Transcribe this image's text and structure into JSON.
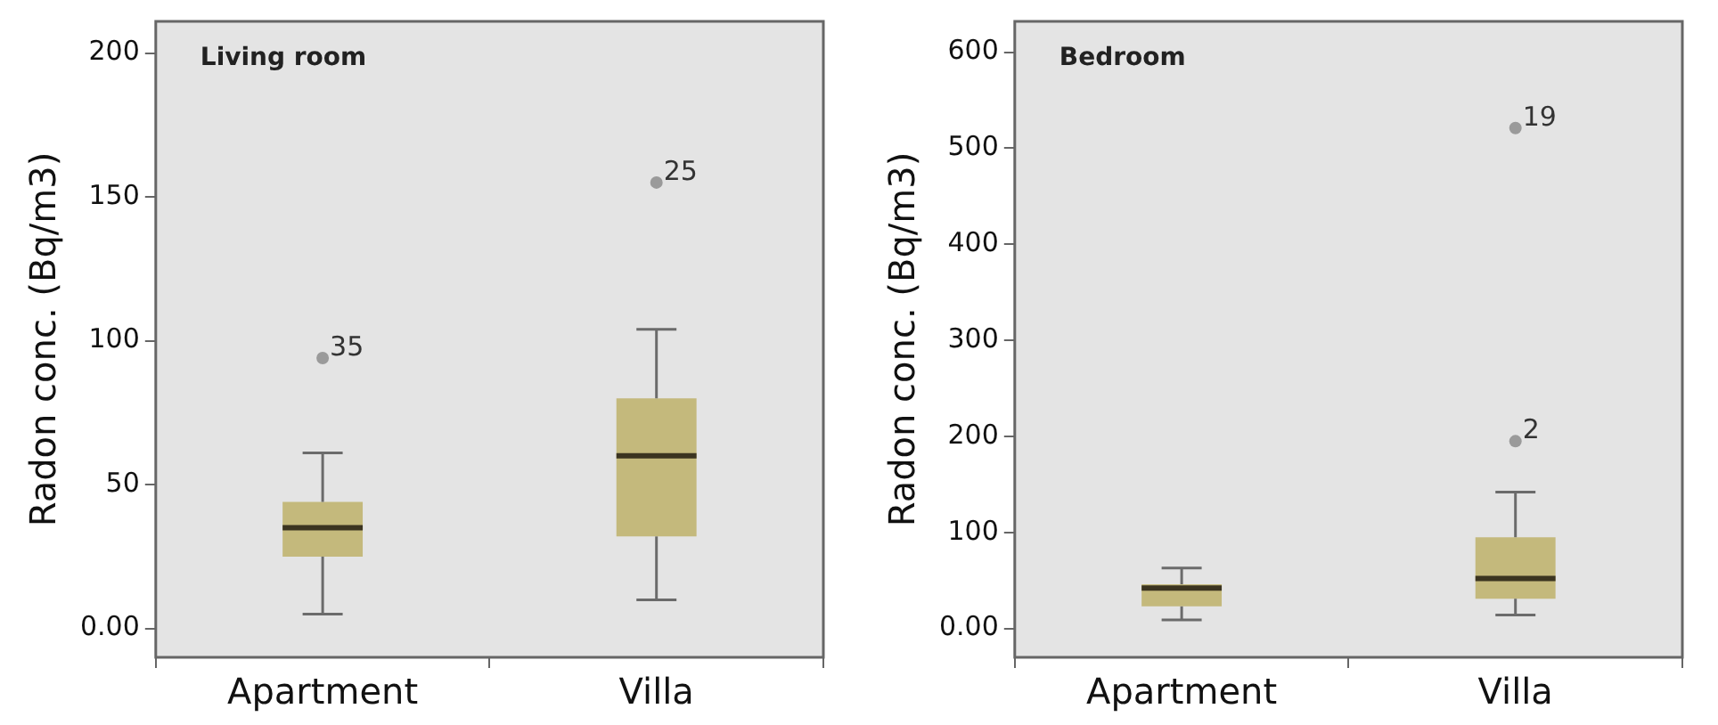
{
  "chart_data": [
    {
      "type": "box",
      "title": "Living room",
      "ylabel": "Radon conc. (Bq/m3)",
      "categories": [
        "Apartment",
        "Villa"
      ],
      "color": "#c4b97c",
      "boxes": [
        {
          "low": 5,
          "q1": 25,
          "median": 35,
          "q3": 44,
          "high": 61,
          "outliers": [
            94
          ]
        },
        {
          "low": 10,
          "q1": 32,
          "median": 60,
          "q3": 80,
          "high": 104,
          "outliers": [
            155
          ]
        }
      ],
      "ylim": [
        -10,
        211
      ],
      "yticks": [
        {
          "value": 0,
          "label": "0.00"
        },
        50,
        100,
        150,
        200
      ],
      "grid": false,
      "legend": false,
      "annotations": [
        "35",
        "25"
      ]
    },
    {
      "type": "box",
      "title": "Bedroom",
      "ylabel": "Radon conc. (Bq/m3)",
      "categories": [
        "Apartment",
        "Villa"
      ],
      "color": "#c4b97c",
      "boxes": [
        {
          "low": 9,
          "q1": 23,
          "median": 42,
          "q3": 46,
          "high": 63
        },
        {
          "low": 14,
          "q1": 31,
          "median": 52,
          "q3": 95,
          "high": 142,
          "outliers": [
            195,
            521
          ]
        }
      ],
      "ylim": [
        -30,
        632
      ],
      "yticks": [
        {
          "value": 0,
          "label": "0.00"
        },
        100,
        200,
        300,
        400,
        500,
        600
      ],
      "grid": false,
      "legend": false,
      "annotations": [
        "2",
        "19"
      ]
    }
  ]
}
